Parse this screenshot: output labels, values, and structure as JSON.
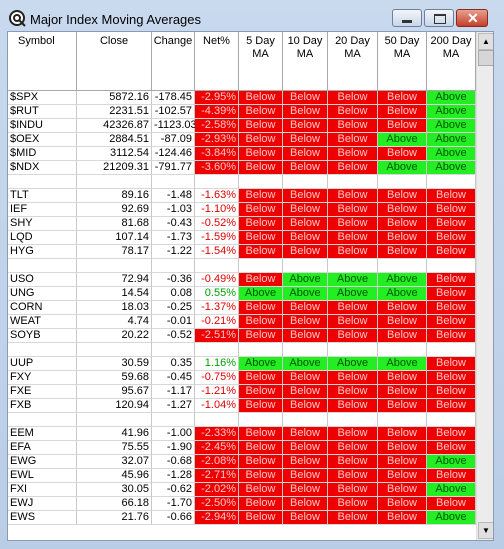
{
  "window": {
    "title": "Major Index Moving Averages"
  },
  "table": {
    "headers": [
      [
        "Symbol"
      ],
      [
        "Close"
      ],
      [
        "Change"
      ],
      [
        "Net%"
      ],
      [
        "5 Day",
        "MA"
      ],
      [
        "10 Day",
        "MA"
      ],
      [
        "20 Day",
        "MA"
      ],
      [
        "50 Day",
        "MA"
      ],
      [
        "200 Day",
        "MA"
      ]
    ],
    "rows": [
      [
        "$SPX",
        "5872.16",
        "-178.45",
        "-2.95%",
        "Below",
        "Below",
        "Below",
        "Below",
        "Above"
      ],
      [
        "$RUT",
        "2231.51",
        "-102.57",
        "-4.39%",
        "Below",
        "Below",
        "Below",
        "Below",
        "Above"
      ],
      [
        "$INDU",
        "42326.87",
        "-1123.03",
        "-2.58%",
        "Below",
        "Below",
        "Below",
        "Below",
        "Above"
      ],
      [
        "$OEX",
        "2884.51",
        "-87.09",
        "-2.93%",
        "Below",
        "Below",
        "Below",
        "Above",
        "Above"
      ],
      [
        "$MID",
        "3112.54",
        "-124.46",
        "-3.84%",
        "Below",
        "Below",
        "Below",
        "Below",
        "Above"
      ],
      [
        "$NDX",
        "21209.31",
        "-791.77",
        "-3.60%",
        "Below",
        "Below",
        "Below",
        "Above",
        "Above"
      ],
      [],
      [
        "TLT",
        "89.16",
        "-1.48",
        "-1.63%",
        "Below",
        "Below",
        "Below",
        "Below",
        "Below"
      ],
      [
        "IEF",
        "92.69",
        "-1.03",
        "-1.10%",
        "Below",
        "Below",
        "Below",
        "Below",
        "Below"
      ],
      [
        "SHY",
        "81.68",
        "-0.43",
        "-0.52%",
        "Below",
        "Below",
        "Below",
        "Below",
        "Below"
      ],
      [
        "LQD",
        "107.14",
        "-1.73",
        "-1.59%",
        "Below",
        "Below",
        "Below",
        "Below",
        "Below"
      ],
      [
        "HYG",
        "78.17",
        "-1.22",
        "-1.54%",
        "Below",
        "Below",
        "Below",
        "Below",
        "Below"
      ],
      [],
      [
        "USO",
        "72.94",
        "-0.36",
        "-0.49%",
        "Below",
        "Above",
        "Above",
        "Above",
        "Below"
      ],
      [
        "UNG",
        "14.54",
        "0.08",
        "0.55%",
        "Above",
        "Above",
        "Above",
        "Above",
        "Below"
      ],
      [
        "CORN",
        "18.03",
        "-0.25",
        "-1.37%",
        "Below",
        "Below",
        "Below",
        "Below",
        "Below"
      ],
      [
        "WEAT",
        "4.74",
        "-0.01",
        "-0.21%",
        "Below",
        "Below",
        "Below",
        "Below",
        "Below"
      ],
      [
        "SOYB",
        "20.22",
        "-0.52",
        "-2.51%",
        "Below",
        "Below",
        "Below",
        "Below",
        "Below"
      ],
      [],
      [
        "UUP",
        "30.59",
        "0.35",
        "1.16%",
        "Above",
        "Above",
        "Above",
        "Above",
        "Below"
      ],
      [
        "FXY",
        "59.68",
        "-0.45",
        "-0.75%",
        "Below",
        "Below",
        "Below",
        "Below",
        "Below"
      ],
      [
        "FXE",
        "95.67",
        "-1.17",
        "-1.21%",
        "Below",
        "Below",
        "Below",
        "Below",
        "Below"
      ],
      [
        "FXB",
        "120.94",
        "-1.27",
        "-1.04%",
        "Below",
        "Below",
        "Below",
        "Below",
        "Below"
      ],
      [],
      [
        "EEM",
        "41.96",
        "-1.00",
        "-2.33%",
        "Below",
        "Below",
        "Below",
        "Below",
        "Below"
      ],
      [
        "EFA",
        "75.55",
        "-1.90",
        "-2.45%",
        "Below",
        "Below",
        "Below",
        "Below",
        "Below"
      ],
      [
        "EWG",
        "32.07",
        "-0.68",
        "-2.08%",
        "Below",
        "Below",
        "Below",
        "Below",
        "Above"
      ],
      [
        "EWL",
        "45.96",
        "-1.28",
        "-2.71%",
        "Below",
        "Below",
        "Below",
        "Below",
        "Below"
      ],
      [
        "FXI",
        "30.05",
        "-0.62",
        "-2.02%",
        "Below",
        "Below",
        "Below",
        "Below",
        "Above"
      ],
      [
        "EWJ",
        "66.18",
        "-1.70",
        "-2.50%",
        "Below",
        "Below",
        "Below",
        "Below",
        "Below"
      ],
      [
        "EWS",
        "21.76",
        "-0.66",
        "-2.94%",
        "Below",
        "Below",
        "Below",
        "Below",
        "Above"
      ]
    ]
  }
}
